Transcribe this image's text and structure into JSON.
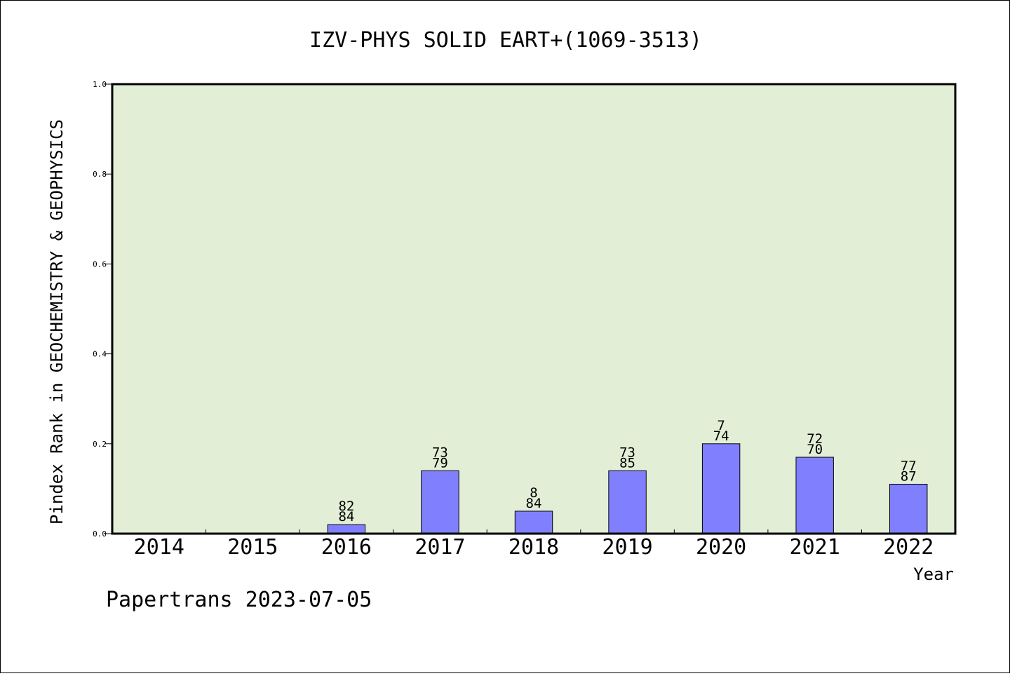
{
  "chart_data": {
    "type": "bar",
    "title": "IZV-PHYS SOLID EART+(1069-3513)",
    "xlabel": "Year",
    "ylabel": "Pindex Rank in GEOCHEMISTRY & GEOPHYSICS",
    "ylim": [
      0,
      1.0
    ],
    "yticks": [
      "0.0",
      "0.2",
      "0.4",
      "0.6",
      "0.8",
      "1.0"
    ],
    "categories": [
      "2014",
      "2015",
      "2016",
      "2017",
      "2018",
      "2019",
      "2020",
      "2021",
      "2022"
    ],
    "values": [
      0,
      0,
      0.02,
      0.14,
      0.05,
      0.14,
      0.2,
      0.17,
      0.11
    ],
    "label_top": [
      "",
      "",
      "82",
      "73",
      "8",
      "73",
      "7",
      "72",
      "77"
    ],
    "label_bottom": [
      "",
      "",
      "84",
      "79",
      "84",
      "85",
      "74",
      "70",
      "87"
    ],
    "grid": false,
    "colors": {
      "plot_bg": "#e2efd6",
      "bar": "#8080ff"
    }
  },
  "footer": "Papertrans 2023-07-05"
}
